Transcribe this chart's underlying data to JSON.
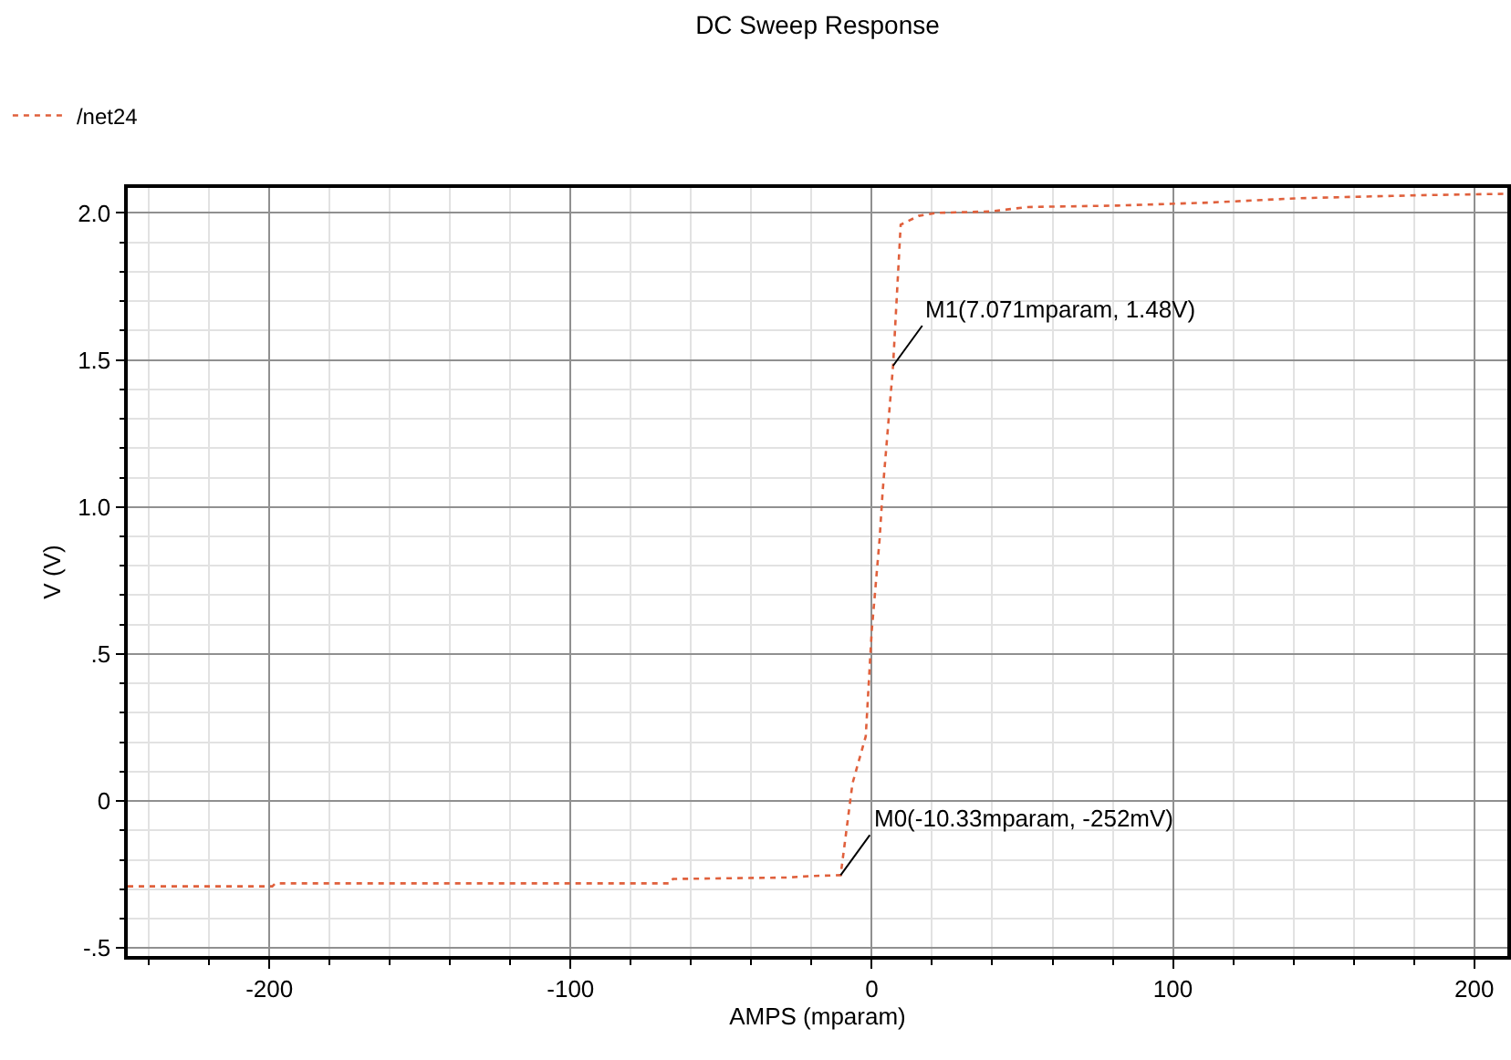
{
  "chart_data": {
    "type": "line",
    "title": "DC Sweep Response",
    "xlabel": "AMPS (mparam)",
    "ylabel": "V (V)",
    "series": [
      {
        "name": "/net24",
        "color": "#e0603c",
        "x": [
          -247,
          -199,
          -198,
          -67,
          -66,
          -28,
          -20,
          -10.33,
          -6.4,
          -2,
          0,
          2.6,
          3.6,
          7.071,
          9.6,
          15.6,
          21.6,
          39.6,
          51.6,
          81.7,
          111.7,
          141.7,
          181.7,
          211
        ],
        "values": [
          -0.29,
          -0.29,
          -0.28,
          -0.28,
          -0.265,
          -0.26,
          -0.255,
          -0.252,
          0.06,
          0.22,
          0.58,
          0.89,
          1.05,
          1.48,
          1.96,
          1.99,
          2.0,
          2.005,
          2.02,
          2.025,
          2.035,
          2.05,
          2.06,
          2.065
        ]
      }
    ],
    "annotations": [
      {
        "text": "M1(7.071mparam, 1.48V)",
        "x": 7.071,
        "y": 1.48
      },
      {
        "text": "M0(-10.33mparam, -252mV)",
        "x": -10.33,
        "y": -0.252
      }
    ],
    "xlim": [
      -247,
      211
    ],
    "ylim": [
      -0.527,
      2.085
    ],
    "xticks": [
      -200,
      -100,
      0,
      100,
      200
    ],
    "yticks": [
      {
        "value": -0.5,
        "label": "-.5"
      },
      0,
      {
        "value": 0.5,
        "label": ".5"
      },
      {
        "value": 1,
        "label": "1.0"
      },
      1.5,
      {
        "value": 2,
        "label": "2.0"
      }
    ],
    "grid": true,
    "legend": "top left",
    "line_style": "dotted",
    "marker": "none"
  }
}
